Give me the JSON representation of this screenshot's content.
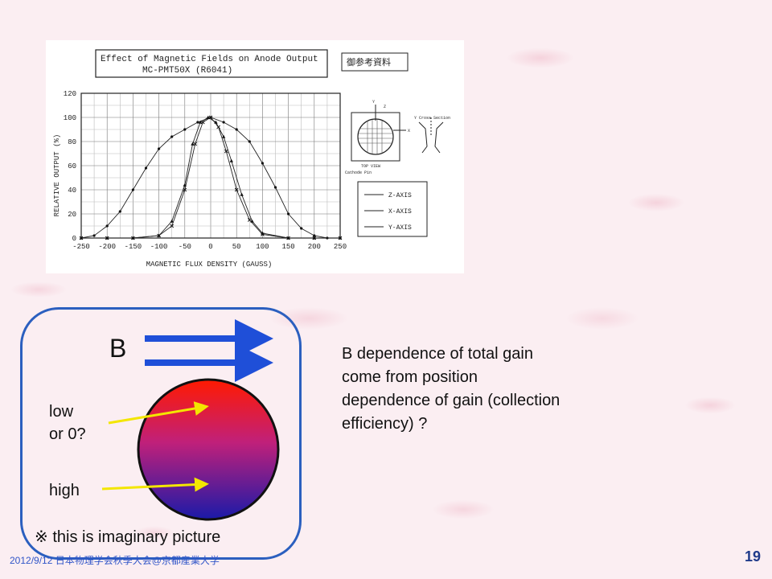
{
  "chart_data": {
    "type": "line",
    "title": "Effect of Magnetic Fields on Anode Output",
    "subtitle": "MC-PMT50X (R6041)",
    "badge": "御参考資料",
    "xlabel": "MAGNETIC FLUX DENSITY (GAUSS)",
    "ylabel": "RELATIVE OUTPUT (%)",
    "xlim": [
      -250,
      250
    ],
    "ylim": [
      0,
      120
    ],
    "xticks": [
      -250,
      -200,
      -150,
      -100,
      -50,
      0,
      50,
      100,
      150,
      200,
      250
    ],
    "yticks": [
      0,
      20,
      40,
      60,
      80,
      100,
      120
    ],
    "grid": true,
    "legend_position": "right",
    "series": [
      {
        "name": "Z-AXIS",
        "marker": "dot",
        "x": [
          -250,
          -225,
          -200,
          -175,
          -150,
          -125,
          -100,
          -75,
          -50,
          -25,
          0,
          25,
          50,
          75,
          100,
          125,
          150,
          175,
          200,
          225,
          250
        ],
        "y": [
          0,
          2,
          10,
          22,
          40,
          58,
          74,
          84,
          90,
          96,
          100,
          96,
          90,
          80,
          62,
          42,
          20,
          8,
          2,
          0,
          0
        ]
      },
      {
        "name": "X-AXIS",
        "marker": "x",
        "x": [
          -250,
          -200,
          -150,
          -100,
          -75,
          -50,
          -30,
          -15,
          0,
          15,
          30,
          50,
          75,
          100,
          150,
          200,
          250
        ],
        "y": [
          0,
          0,
          0,
          2,
          10,
          40,
          78,
          96,
          100,
          92,
          72,
          40,
          15,
          3,
          0,
          0,
          0
        ]
      },
      {
        "name": "Y-AXIS",
        "marker": "tri",
        "x": [
          -250,
          -200,
          -150,
          -100,
          -75,
          -50,
          -35,
          -20,
          -5,
          10,
          25,
          40,
          60,
          80,
          100,
          150,
          200,
          250
        ],
        "y": [
          0,
          0,
          0,
          2,
          14,
          44,
          78,
          96,
          100,
          96,
          84,
          64,
          36,
          14,
          4,
          0,
          0,
          0
        ]
      }
    ],
    "inset_labels": {
      "top_view": "TOP VIEW",
      "cathode_pin": "Cathode Pin",
      "cross_section": "Y Cross Section",
      "x": "X",
      "y": "Y",
      "z": "Z"
    }
  },
  "diagram": {
    "b_label": "B",
    "low_label_1": "low",
    "low_label_2": "or 0?",
    "high_label": "high",
    "note": "※ this is imaginary picture",
    "colors": {
      "border": "#2b5fbf",
      "arrow_blue": "#1f4fd8",
      "arrow_yellow": "#f3e600",
      "gradient_top": "#ff1a00",
      "gradient_bottom": "#1a1aa8"
    }
  },
  "description": "B dependence of total gain come from position dependence of gain (collection efficiency) ?",
  "footer": "2012/9/12 日本物理学会秋季大会@京都産業大学",
  "page_number": "19"
}
